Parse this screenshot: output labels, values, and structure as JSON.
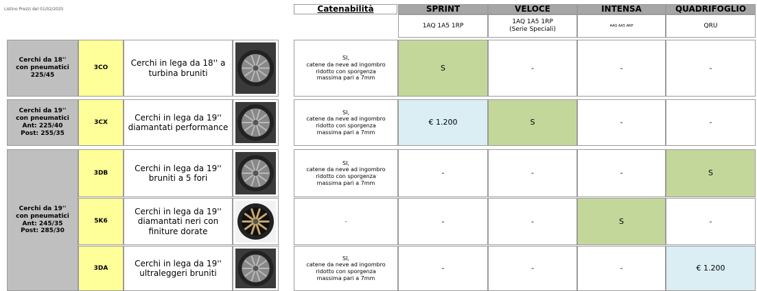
{
  "header": {
    "note": "Listino Prezzi del 01/02/2025",
    "catenability_title": "Catenabilità",
    "models": [
      {
        "name": "SPRINT",
        "codes": "1AQ 1A5 1RP"
      },
      {
        "name": "VELOCE",
        "codes": "1AQ 1A5 1RP\n(Serie Speciali)"
      },
      {
        "name": "INTENSA",
        "codes": "AAQ AA5 ARP"
      },
      {
        "name": "QUADRIFOGLIO",
        "codes": "QRU"
      }
    ]
  },
  "groups": [
    {
      "label": "Cerchi da 18''\ncon pneumatici\n225/45",
      "items": [
        {
          "code": "3CO",
          "description": "Cerchi in lega da 18'' a turbina bruniti",
          "catenability": "SI,\ncatene  da neve ad ingombro\nridotto con sporgenza\nmassima pari a 7mm",
          "prices": [
            "S",
            "-",
            "-",
            "-"
          ],
          "colors": [
            "#c4d79b",
            null,
            null,
            null
          ]
        }
      ]
    },
    {
      "label": "Cerchi da 19''\ncon pneumatici\nAnt: 225/40\nPost: 255/35",
      "items": [
        {
          "code": "3CX",
          "description": "Cerchi in lega da 19'' diamantati performance",
          "catenability": "SI,\ncatene  da neve ad ingombro\nridotto con sporgenza\nmassima pari a 7mm",
          "prices": [
            "€ 1.200",
            "S",
            "-",
            "-"
          ],
          "colors": [
            "#daeef3",
            "#c4d79b",
            null,
            null
          ]
        }
      ]
    },
    {
      "label": "Cerchi da 19''\ncon pneumatici\nAnt: 245/35\nPost: 285/30",
      "items": [
        {
          "code": "3DB",
          "description": "Cerchi in lega da 19'' bruniti a 5 fori",
          "catenability": "SI,\ncatene  da neve ad ingombro\nridotto con sporgenza\nmassima pari a 7mm",
          "prices": [
            "-",
            "-",
            "-",
            "S"
          ],
          "colors": [
            null,
            null,
            null,
            "#c4d79b"
          ]
        },
        {
          "code": "5K6",
          "description": "Cerchi in lega da 19'' diamantati neri con finiture dorate",
          "catenability": "-",
          "prices": [
            "-",
            "-",
            "S",
            "-"
          ],
          "colors": [
            null,
            null,
            "#c4d79b",
            null
          ]
        },
        {
          "code": "3DA",
          "description": "Cerchi in lega da 19'' ultraleggeri bruniti",
          "catenability": "SI,\ncatene  da neve ad ingombro\nridotto con sporgenza\nmassima pari a 7mm",
          "prices": [
            "-",
            "-",
            "-",
            "€ 1.200"
          ],
          "colors": [
            null,
            null,
            null,
            "#daeef3"
          ]
        }
      ]
    }
  ]
}
